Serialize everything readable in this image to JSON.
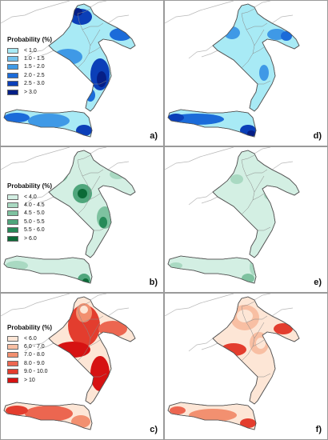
{
  "panels": [
    {
      "id": "a",
      "label": "a)",
      "theme": "blue"
    },
    {
      "id": "d",
      "label": "d)",
      "theme": "blue"
    },
    {
      "id": "b",
      "label": "b)",
      "theme": "green"
    },
    {
      "id": "e",
      "label": "e)",
      "theme": "green"
    },
    {
      "id": "c",
      "label": "c)",
      "theme": "red"
    },
    {
      "id": "f",
      "label": "f)",
      "theme": "red"
    }
  ],
  "legends": {
    "blue": {
      "title": "Probability (%)",
      "classes": [
        {
          "label": "< 1.0",
          "color": "#a8eaf5"
        },
        {
          "label": "1.0 - 1.5",
          "color": "#74c3ee"
        },
        {
          "label": "1.5 - 2.0",
          "color": "#3f99e6"
        },
        {
          "label": "2.0 - 2.5",
          "color": "#1b6bd9"
        },
        {
          "label": "2.5 - 3.0",
          "color": "#0b3fb8"
        },
        {
          "label": "> 3.0",
          "color": "#061f86"
        }
      ]
    },
    "green": {
      "title": "Probability (%)",
      "classes": [
        {
          "label": "< 4.0",
          "color": "#d3efe3"
        },
        {
          "label": "4.0 - 4.5",
          "color": "#a9d9c2"
        },
        {
          "label": "4.5 - 5.0",
          "color": "#7ec2a0"
        },
        {
          "label": "5.0 - 5.5",
          "color": "#4fa67c"
        },
        {
          "label": "5.5 - 6.0",
          "color": "#268a58"
        },
        {
          "label": "> 6.0",
          "color": "#0c6a37"
        }
      ]
    },
    "red": {
      "title": "Probability (%)",
      "classes": [
        {
          "label": "< 6.0",
          "color": "#fde6d6"
        },
        {
          "label": "6.0 - 7.0",
          "color": "#f8bfa3"
        },
        {
          "label": "7.0 - 8.0",
          "color": "#f29070"
        },
        {
          "label": "8.0 - 9.0",
          "color": "#ec6650"
        },
        {
          "label": "9.0 - 10.0",
          "color": "#e33d2e"
        },
        {
          "label": "> 10",
          "color": "#d61212"
        }
      ]
    }
  },
  "colors": {
    "outline": "#555555",
    "neighbor_border": "#b8b8b8",
    "region_border": "#8a8a8a"
  }
}
